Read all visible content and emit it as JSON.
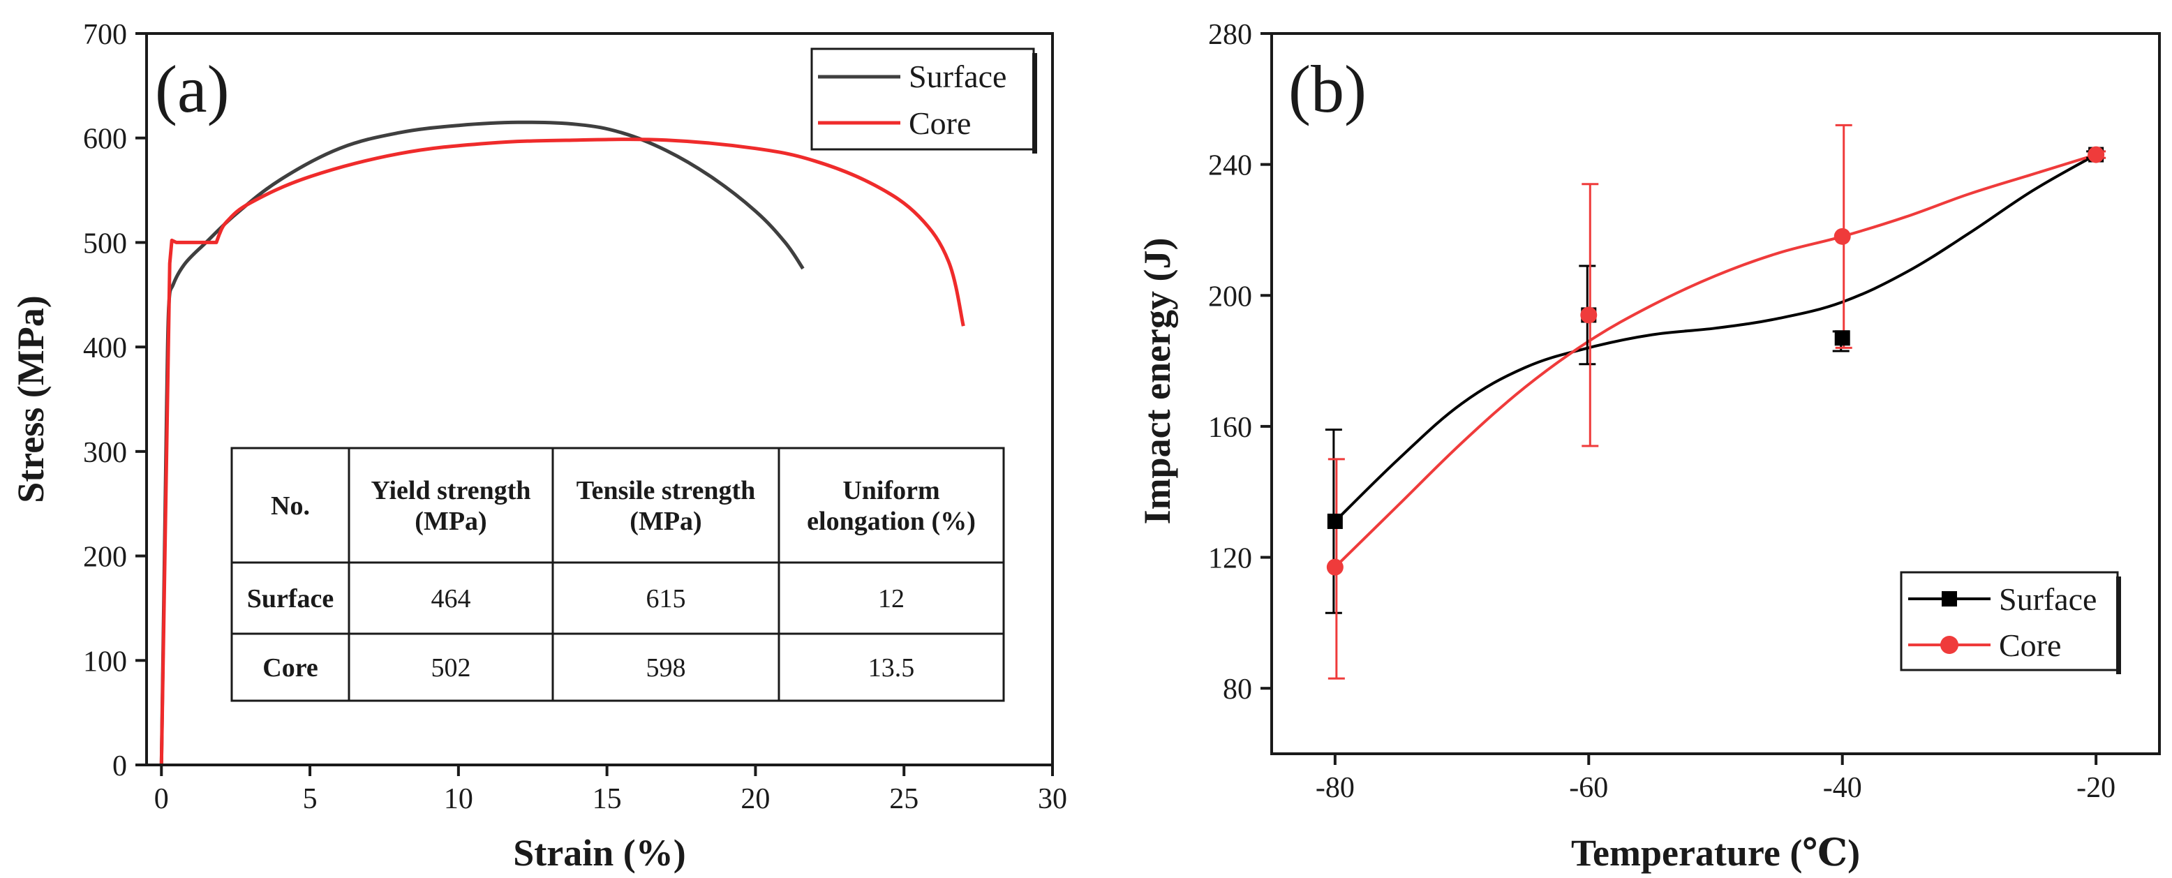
{
  "chart_data": [
    {
      "type": "line",
      "panel_label": "(a)",
      "xlabel": "Strain (%)",
      "ylabel": "Stress (MPa)",
      "xlim": [
        -0.5,
        30
      ],
      "ylim": [
        0,
        700
      ],
      "xticks": [
        0,
        5,
        10,
        15,
        20,
        25,
        30
      ],
      "yticks": [
        0,
        100,
        200,
        300,
        400,
        500,
        600,
        700
      ],
      "legend_position": "top-right",
      "series": [
        {
          "name": "Surface",
          "color": "#3f3f3f",
          "x": [
            0,
            0.18,
            0.25,
            0.4,
            0.8,
            1.5,
            2.5,
            4,
            6,
            8,
            10,
            12,
            14,
            15.5,
            17,
            18.5,
            20,
            21,
            21.6
          ],
          "y": [
            0,
            350,
            440,
            460,
            480,
            500,
            527,
            560,
            590,
            605,
            612,
            615,
            613,
            605,
            588,
            563,
            530,
            500,
            475
          ]
        },
        {
          "name": "Core",
          "color": "#ef2b2b",
          "x": [
            0,
            0.28,
            0.35,
            0.5,
            1.0,
            1.85,
            1.95,
            2.2,
            3,
            5,
            8,
            11,
            14,
            17,
            20,
            22,
            24,
            25.5,
            26.5,
            27
          ],
          "y": [
            0,
            480,
            502,
            500,
            500,
            500,
            508,
            520,
            538,
            563,
            585,
            595,
            598,
            598,
            590,
            578,
            555,
            525,
            482,
            420
          ]
        }
      ],
      "table": {
        "headers": [
          "No.",
          "Yield strength (MPa)",
          "Tensile strength (MPa)",
          "Uniform elongation (%)"
        ],
        "header_lines": [
          [
            "No."
          ],
          [
            "Yield strength",
            "(MPa)"
          ],
          [
            "Tensile strength",
            "(MPa)"
          ],
          [
            "Uniform",
            "elongation (%)"
          ]
        ],
        "rows": [
          [
            "Surface",
            "464",
            "615",
            "12"
          ],
          [
            "Core",
            "502",
            "598",
            "13.5"
          ]
        ]
      }
    },
    {
      "type": "line",
      "panel_label": "(b)",
      "xlabel": "Temperature (℃)",
      "ylabel": "Impact energy (J)",
      "xlim": [
        -85,
        -15
      ],
      "ylim": [
        60,
        280
      ],
      "xticks": [
        -80,
        -60,
        -40,
        -20
      ],
      "yticks": [
        80,
        120,
        160,
        200,
        240,
        280
      ],
      "legend_position": "bottom-right",
      "series": [
        {
          "name": "Surface",
          "color": "#000000",
          "marker": "square",
          "x": [
            -80,
            -60,
            -40,
            -20
          ],
          "y": [
            131,
            194,
            187,
            243
          ],
          "err_low": [
            103,
            179,
            183,
            242
          ],
          "err_high": [
            159,
            209,
            189,
            244
          ],
          "curve": [
            [
              -80,
              131
            ],
            [
              -75,
              150
            ],
            [
              -70,
              167
            ],
            [
              -65,
              178
            ],
            [
              -60,
              184
            ],
            [
              -55,
              188
            ],
            [
              -50,
              190
            ],
            [
              -45,
              193
            ],
            [
              -40,
              198
            ],
            [
              -35,
              207
            ],
            [
              -30,
              219
            ],
            [
              -25,
              232
            ],
            [
              -20,
              243
            ]
          ]
        },
        {
          "name": "Core",
          "color": "#ef3b3b",
          "marker": "circle",
          "x": [
            -80,
            -60,
            -40,
            -20
          ],
          "y": [
            117,
            194,
            218,
            243
          ],
          "err_low": [
            83,
            154,
            184,
            242
          ],
          "err_high": [
            150,
            234,
            252,
            244
          ],
          "curve": [
            [
              -80,
              117
            ],
            [
              -75,
              136
            ],
            [
              -70,
              155
            ],
            [
              -65,
              172
            ],
            [
              -60,
              186
            ],
            [
              -55,
              197
            ],
            [
              -50,
              206
            ],
            [
              -45,
              213
            ],
            [
              -40,
              218
            ],
            [
              -35,
              224
            ],
            [
              -30,
              231
            ],
            [
              -25,
              237
            ],
            [
              -20,
              243
            ]
          ]
        }
      ]
    }
  ]
}
